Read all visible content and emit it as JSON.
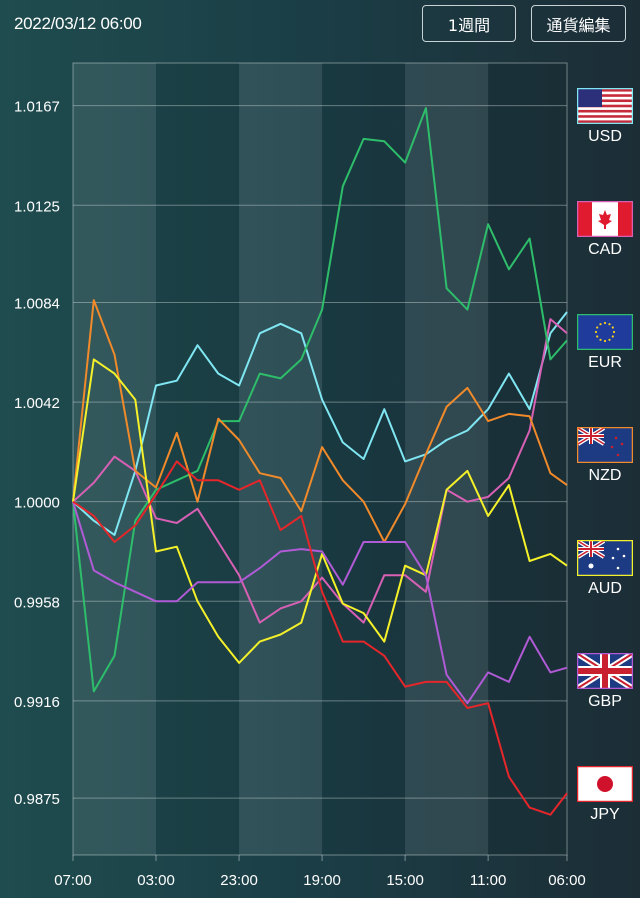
{
  "header": {
    "datetime": "2022/03/12 06:00",
    "period_button": "1週間",
    "edit_button": "通貨編集"
  },
  "chart_data": {
    "type": "line",
    "xlabel": "",
    "ylabel": "",
    "x_tick_labels": [
      "07:00",
      "03:00",
      "23:00",
      "19:00",
      "15:00",
      "11:00",
      "06:00"
    ],
    "x_tick_hours": [
      0,
      20,
      40,
      60,
      80,
      100,
      119
    ],
    "y_ticks": [
      1.0167,
      1.0125,
      1.0084,
      1.0042,
      1.0,
      0.9958,
      0.9916,
      0.9875
    ],
    "y_tick_labels": [
      "1.0167",
      "1.0125",
      "1.0084",
      "1.0042",
      "1.0000",
      "0.9958",
      "0.9916",
      "0.9875"
    ],
    "ylim": [
      0.9851,
      1.0185
    ],
    "xlim": [
      0,
      119
    ],
    "grid": true,
    "legend_position": "right",
    "x_hours": [
      0,
      5,
      10,
      15,
      20,
      25,
      30,
      35,
      40,
      45,
      50,
      55,
      60,
      65,
      70,
      75,
      80,
      85,
      90,
      95,
      100,
      105,
      110,
      115,
      119
    ],
    "series": [
      {
        "name": "USD",
        "color": "#7fe6f2",
        "flag": "us-flag-icon",
        "values": [
          1.0,
          0.9992,
          0.9986,
          1.0013,
          1.0049,
          1.0051,
          1.0066,
          1.0054,
          1.0049,
          1.0071,
          1.0075,
          1.0071,
          1.0043,
          1.0025,
          1.0018,
          1.0039,
          1.0017,
          1.002,
          1.0026,
          1.003,
          1.0039,
          1.0054,
          1.0039,
          1.0071,
          1.008
        ]
      },
      {
        "name": "CAD",
        "color": "#d760b4",
        "flag": "canada-flag-icon",
        "values": [
          1.0,
          1.0008,
          1.0019,
          1.0013,
          0.9993,
          0.9991,
          0.9997,
          0.9983,
          0.9969,
          0.9949,
          0.9955,
          0.9958,
          0.9968,
          0.9957,
          0.9949,
          0.9969,
          0.9969,
          0.9962,
          1.0005,
          1.0,
          1.0002,
          1.001,
          1.003,
          1.0077,
          1.0071
        ]
      },
      {
        "name": "EUR",
        "color": "#2ebd6a",
        "flag": "eu-flag-icon",
        "values": [
          1.0,
          0.992,
          0.9935,
          0.9992,
          1.0005,
          1.0009,
          1.0013,
          1.0034,
          1.0034,
          1.0054,
          1.0052,
          1.006,
          1.0081,
          1.0133,
          1.0153,
          1.0152,
          1.0143,
          1.0166,
          1.009,
          1.0081,
          1.0117,
          1.0098,
          1.0111,
          1.006,
          1.0068
        ]
      },
      {
        "name": "NZD",
        "color": "#f08a2a",
        "flag": "new-zealand-flag-icon",
        "values": [
          1.0,
          1.0085,
          1.0062,
          1.0013,
          1.0006,
          1.0029,
          1.0,
          1.0035,
          1.0026,
          1.0012,
          1.001,
          0.9996,
          1.0023,
          1.0009,
          1.0,
          0.9983,
          0.9999,
          1.002,
          1.004,
          1.0048,
          1.0034,
          1.0037,
          1.0036,
          1.0012,
          1.0007
        ]
      },
      {
        "name": "AUD",
        "color": "#f4f02a",
        "flag": "australia-flag-icon",
        "values": [
          1.0,
          1.006,
          1.0054,
          1.0043,
          0.9979,
          0.9981,
          0.9958,
          0.9943,
          0.9932,
          0.9941,
          0.9944,
          0.9949,
          0.9978,
          0.9957,
          0.9953,
          0.9941,
          0.9973,
          0.9969,
          1.0005,
          1.0013,
          0.9994,
          1.0007,
          0.9975,
          0.9978,
          0.9973
        ]
      },
      {
        "name": "GBP",
        "color": "#b05ad6",
        "flag": "uk-flag-icon",
        "values": [
          1.0,
          0.9971,
          0.9966,
          0.9962,
          0.9958,
          0.9958,
          0.9966,
          0.9966,
          0.9966,
          0.9972,
          0.9979,
          0.998,
          0.9979,
          0.9965,
          0.9983,
          0.9983,
          0.9983,
          0.9969,
          0.9927,
          0.9915,
          0.9928,
          0.9924,
          0.9943,
          0.9928,
          0.993
        ]
      },
      {
        "name": "JPY",
        "color": "#e5262a",
        "flag": "japan-flag-icon",
        "values": [
          1.0,
          0.9994,
          0.9983,
          0.999,
          1.0003,
          1.0017,
          1.0009,
          1.0009,
          1.0005,
          1.0009,
          0.9988,
          0.9994,
          0.9962,
          0.9941,
          0.9941,
          0.9935,
          0.9922,
          0.9924,
          0.9924,
          0.9913,
          0.9915,
          0.9884,
          0.9871,
          0.9868,
          0.9877
        ]
      }
    ]
  }
}
